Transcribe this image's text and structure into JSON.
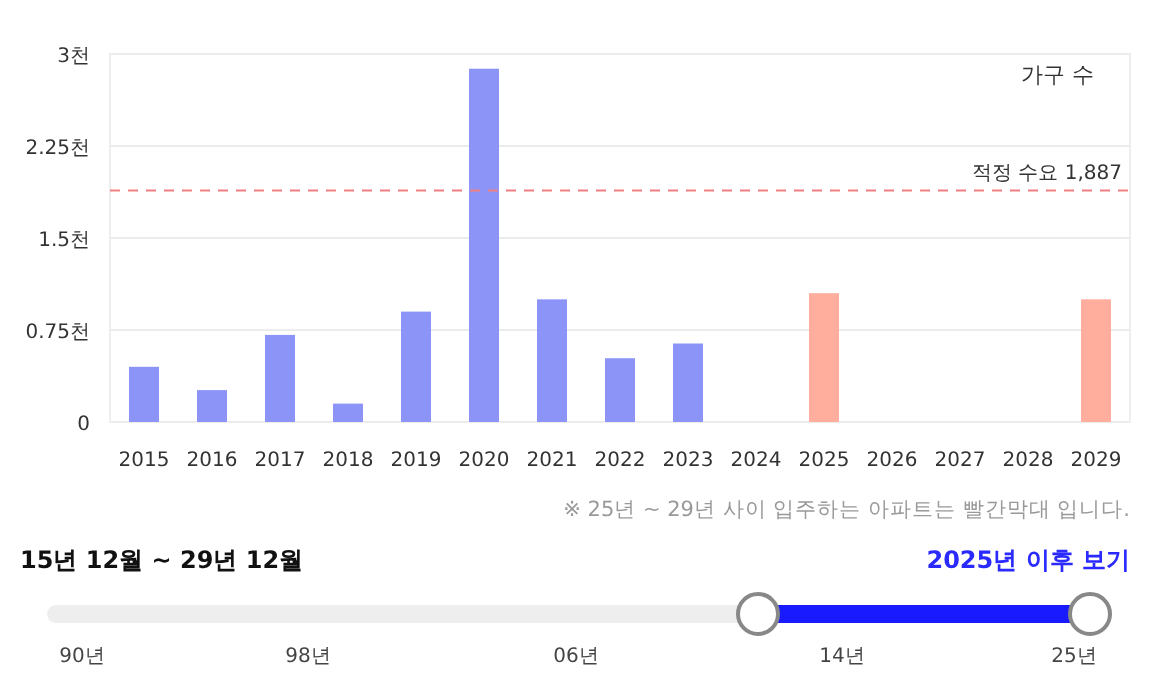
{
  "chart_data": {
    "type": "bar",
    "categories": [
      "2015",
      "2016",
      "2017",
      "2018",
      "2019",
      "2020",
      "2021",
      "2022",
      "2023",
      "2024",
      "2025",
      "2026",
      "2027",
      "2028",
      "2029"
    ],
    "values": [
      0.45,
      0.26,
      0.71,
      0.15,
      0.9,
      2.88,
      1.0,
      0.52,
      0.64,
      null,
      1.05,
      null,
      null,
      null,
      1.0
    ],
    "colors": [
      "#8c95f7",
      "#8c95f7",
      "#8c95f7",
      "#8c95f7",
      "#8c95f7",
      "#8c95f7",
      "#8c95f7",
      "#8c95f7",
      "#8c95f7",
      null,
      "#ffae9e",
      null,
      null,
      null,
      "#ffae9e"
    ],
    "ylim": [
      0,
      3
    ],
    "yticks": [
      0,
      {
        "value": 0.75,
        "label": "0.75천"
      },
      {
        "value": 1.5,
        "label": "1.5천"
      },
      {
        "value": 2.25,
        "label": "2.25천"
      },
      {
        "value": 3,
        "label": "3천"
      }
    ],
    "grid": "y",
    "legend_title": "가구 수",
    "ref_lines": [
      {
        "axis": "y",
        "value": 1.887,
        "label": "적정 수요 1,887",
        "color": "#f08080",
        "line_style": "dashed"
      }
    ],
    "annotations": [
      "※ 25년 ~ 29년 사이 입주하는 아파트는 빨간막대 입니다.",
      "15년 12월 ~ 29년 12월",
      "2025년 이후 보기",
      "90년",
      "98년",
      "06년",
      "14년",
      "25년"
    ]
  }
}
